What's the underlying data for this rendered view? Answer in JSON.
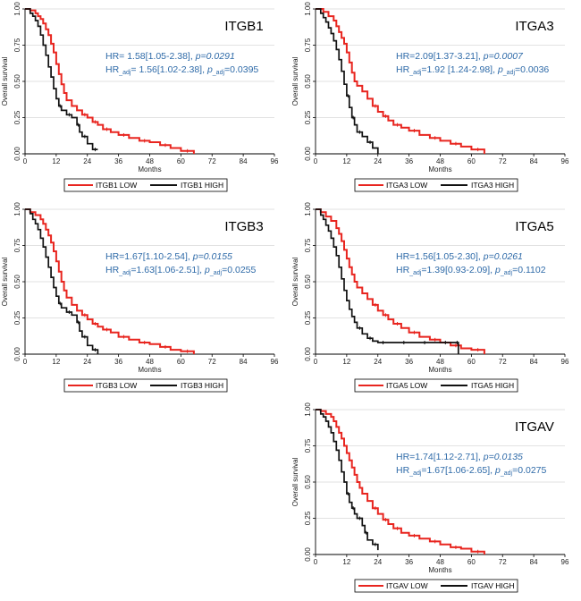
{
  "axes": {
    "xlabel": "Months",
    "ylabel": "Overall survival",
    "xticks": [
      0,
      12,
      24,
      36,
      48,
      60,
      72,
      84,
      96
    ],
    "yticks": [
      "0.00",
      "0.25",
      "0.50",
      "0.75",
      "1.00"
    ],
    "xlim": [
      0,
      96
    ],
    "ylim": [
      0,
      1
    ]
  },
  "colors": {
    "low": "#e8251f",
    "high": "#111111",
    "stat": "#2e6aa8",
    "grid": "#d9d9d9"
  },
  "chart_data": [
    {
      "type": "line",
      "title": "ITGB1",
      "hr_text": "HR= 1.58[1.05-2.38],",
      "p_text": "p=0.0291",
      "hradj_head": "HR",
      "hradj_sub": "_adj",
      "hradj_text": "= 1.56[1.02-2.38],",
      "padj_head": "p",
      "padj_sub": "_adj",
      "padj_text": "=0.0395",
      "legend": [
        "ITGB1 LOW",
        "ITGB1 HIGH"
      ],
      "series": [
        {
          "name": "ITGB1 LOW",
          "x": [
            0,
            2,
            4,
            5,
            6,
            7,
            8,
            9,
            10,
            11,
            12,
            13,
            14,
            15,
            16,
            18,
            20,
            22,
            24,
            26,
            28,
            30,
            33,
            36,
            40,
            44,
            48,
            52,
            56,
            60,
            65
          ],
          "y": [
            1.0,
            0.99,
            0.97,
            0.95,
            0.93,
            0.9,
            0.86,
            0.82,
            0.76,
            0.7,
            0.62,
            0.55,
            0.48,
            0.42,
            0.37,
            0.33,
            0.3,
            0.27,
            0.25,
            0.22,
            0.2,
            0.17,
            0.15,
            0.13,
            0.11,
            0.09,
            0.08,
            0.06,
            0.04,
            0.02,
            0.0
          ]
        },
        {
          "name": "ITGB1 HIGH",
          "x": [
            0,
            2,
            3,
            4,
            5,
            6,
            7,
            8,
            9,
            10,
            11,
            12,
            13,
            14,
            16,
            18,
            20,
            21,
            22,
            24,
            26,
            28
          ],
          "y": [
            1.0,
            0.97,
            0.95,
            0.92,
            0.88,
            0.82,
            0.75,
            0.68,
            0.6,
            0.53,
            0.45,
            0.38,
            0.33,
            0.3,
            0.27,
            0.25,
            0.2,
            0.15,
            0.12,
            0.07,
            0.03,
            0.03
          ]
        }
      ]
    },
    {
      "type": "line",
      "title": "ITGA3",
      "hr_text": "HR=2.09[1.37-3.21],",
      "p_text": "p=0.0007",
      "hradj_head": "HR",
      "hradj_sub": "_adj",
      "hradj_text": "=1.92 [1.24-2.98],",
      "padj_head": "p",
      "padj_sub": "_adj",
      "padj_text": "=0.0036",
      "legend": [
        "ITGA3 LOW",
        "ITGA3 HIGH"
      ],
      "series": [
        {
          "name": "ITGA3 LOW",
          "x": [
            0,
            3,
            5,
            7,
            8,
            9,
            10,
            11,
            12,
            13,
            14,
            15,
            16,
            18,
            20,
            22,
            24,
            26,
            28,
            30,
            33,
            36,
            40,
            44,
            48,
            52,
            56,
            60,
            65
          ],
          "y": [
            1.0,
            0.98,
            0.95,
            0.92,
            0.88,
            0.84,
            0.8,
            0.76,
            0.7,
            0.63,
            0.56,
            0.5,
            0.47,
            0.43,
            0.38,
            0.33,
            0.29,
            0.26,
            0.23,
            0.2,
            0.18,
            0.16,
            0.13,
            0.11,
            0.09,
            0.07,
            0.05,
            0.03,
            0.0
          ]
        },
        {
          "name": "ITGA3 HIGH",
          "x": [
            0,
            2,
            3,
            4,
            5,
            6,
            7,
            8,
            9,
            10,
            11,
            12,
            13,
            14,
            15,
            16,
            18,
            20,
            22,
            24
          ],
          "y": [
            1.0,
            0.97,
            0.94,
            0.91,
            0.87,
            0.83,
            0.78,
            0.72,
            0.65,
            0.57,
            0.48,
            0.4,
            0.32,
            0.25,
            0.2,
            0.15,
            0.12,
            0.08,
            0.04,
            0.0
          ]
        }
      ]
    },
    {
      "type": "line",
      "title": "ITGB3",
      "hr_text": "HR=1.67[1.10-2.54],",
      "p_text": "p=0.0155",
      "hradj_head": "HR",
      "hradj_sub": "_adj",
      "hradj_text": "=1.63[1.06-2.51],",
      "padj_head": "p",
      "padj_sub": "_adj",
      "padj_text": "=0.0255",
      "legend": [
        "ITGB3 LOW",
        "ITGB3 HIGH"
      ],
      "series": [
        {
          "name": "ITGB3 LOW",
          "x": [
            0,
            2,
            4,
            6,
            7,
            8,
            9,
            10,
            11,
            12,
            13,
            14,
            15,
            16,
            18,
            20,
            22,
            24,
            26,
            28,
            30,
            33,
            36,
            40,
            44,
            48,
            52,
            56,
            60,
            65
          ],
          "y": [
            1.0,
            0.98,
            0.96,
            0.93,
            0.9,
            0.86,
            0.82,
            0.77,
            0.71,
            0.64,
            0.57,
            0.5,
            0.44,
            0.39,
            0.34,
            0.3,
            0.27,
            0.24,
            0.21,
            0.19,
            0.17,
            0.15,
            0.12,
            0.1,
            0.08,
            0.07,
            0.05,
            0.03,
            0.02,
            0.0
          ]
        },
        {
          "name": "ITGB3 HIGH",
          "x": [
            0,
            2,
            3,
            4,
            5,
            6,
            7,
            8,
            9,
            10,
            11,
            12,
            13,
            14,
            16,
            18,
            20,
            21,
            22,
            24,
            26,
            28
          ],
          "y": [
            1.0,
            0.97,
            0.93,
            0.9,
            0.86,
            0.8,
            0.74,
            0.67,
            0.6,
            0.53,
            0.46,
            0.4,
            0.35,
            0.32,
            0.29,
            0.27,
            0.22,
            0.16,
            0.12,
            0.06,
            0.03,
            0.0
          ]
        }
      ]
    },
    {
      "type": "line",
      "title": "ITGA5",
      "hr_text": "HR=1.56[1.05-2.30],",
      "p_text": "p=0.0261",
      "hradj_head": "HR",
      "hradj_sub": "_adj",
      "hradj_text": "=1.39[0.93-2.09],",
      "padj_head": "p",
      "padj_sub": "_adj",
      "padj_text": "=0.1102",
      "legend": [
        "ITGA5 LOW",
        "ITGA5 HIGH"
      ],
      "series": [
        {
          "name": "ITGA5 LOW",
          "x": [
            0,
            2,
            4,
            6,
            8,
            9,
            10,
            11,
            12,
            13,
            14,
            15,
            16,
            18,
            20,
            22,
            24,
            26,
            28,
            30,
            33,
            36,
            40,
            44,
            48,
            52,
            56,
            60,
            65
          ],
          "y": [
            1.0,
            0.98,
            0.95,
            0.92,
            0.87,
            0.83,
            0.78,
            0.72,
            0.66,
            0.6,
            0.55,
            0.5,
            0.46,
            0.42,
            0.38,
            0.34,
            0.3,
            0.27,
            0.24,
            0.21,
            0.18,
            0.15,
            0.12,
            0.1,
            0.08,
            0.06,
            0.04,
            0.03,
            0.0
          ]
        },
        {
          "name": "ITGA5 HIGH",
          "x": [
            0,
            2,
            3,
            4,
            5,
            6,
            7,
            8,
            9,
            10,
            11,
            12,
            13,
            14,
            15,
            16,
            18,
            20,
            22,
            24,
            28,
            32,
            36,
            40,
            44,
            48,
            52,
            54,
            55
          ],
          "y": [
            1.0,
            0.96,
            0.93,
            0.89,
            0.85,
            0.8,
            0.74,
            0.68,
            0.6,
            0.52,
            0.44,
            0.37,
            0.31,
            0.26,
            0.22,
            0.18,
            0.14,
            0.11,
            0.09,
            0.08,
            0.08,
            0.08,
            0.08,
            0.08,
            0.08,
            0.08,
            0.08,
            0.08,
            0.0
          ]
        }
      ]
    },
    {
      "type": "line",
      "title": "ITGAV",
      "hr_text": "HR=1.74[1.12-2.71],",
      "p_text": "p=0.0135",
      "hradj_head": "HR",
      "hradj_sub": "_adj",
      "hradj_text": "=1.67[1.06-2.65],",
      "padj_head": "p",
      "padj_sub": "_adj",
      "padj_text": "=0.0275",
      "legend": [
        "ITGAV LOW",
        "ITGAV HIGH"
      ],
      "series": [
        {
          "name": "ITGAV LOW",
          "x": [
            0,
            2,
            4,
            6,
            7,
            8,
            9,
            10,
            11,
            12,
            13,
            14,
            15,
            16,
            17,
            18,
            20,
            22,
            24,
            26,
            28,
            30,
            33,
            36,
            40,
            44,
            48,
            52,
            56,
            60,
            65
          ],
          "y": [
            1.0,
            0.99,
            0.97,
            0.95,
            0.92,
            0.88,
            0.84,
            0.8,
            0.75,
            0.7,
            0.65,
            0.6,
            0.55,
            0.5,
            0.46,
            0.42,
            0.37,
            0.32,
            0.28,
            0.24,
            0.21,
            0.18,
            0.15,
            0.13,
            0.11,
            0.09,
            0.07,
            0.05,
            0.04,
            0.02,
            0.0
          ]
        },
        {
          "name": "ITGAV HIGH",
          "x": [
            0,
            2,
            3,
            4,
            5,
            6,
            7,
            8,
            9,
            10,
            11,
            12,
            13,
            14,
            15,
            16,
            18,
            19,
            20,
            22,
            24
          ],
          "y": [
            1.0,
            0.97,
            0.95,
            0.92,
            0.88,
            0.84,
            0.78,
            0.72,
            0.65,
            0.57,
            0.5,
            0.42,
            0.36,
            0.32,
            0.28,
            0.25,
            0.2,
            0.15,
            0.1,
            0.07,
            0.03
          ]
        }
      ]
    }
  ]
}
